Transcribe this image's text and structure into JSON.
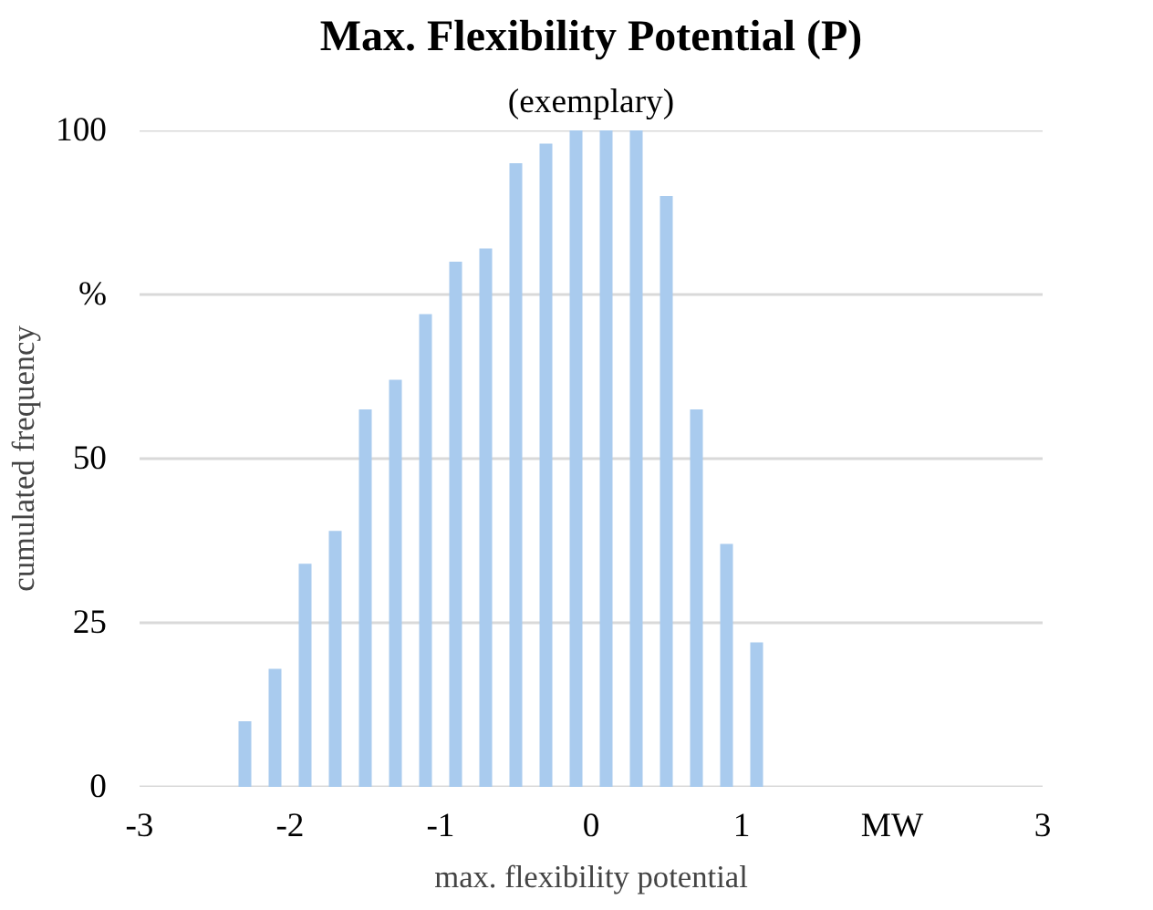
{
  "chart_data": {
    "type": "bar",
    "title": "Max. Flexibility Potential (P)",
    "subtitle": "(exemplary)",
    "xlabel": "max. flexibility potential",
    "ylabel": "cumulated frequency",
    "x": [
      -2.3,
      -2.1,
      -1.9,
      -1.7,
      -1.5,
      -1.3,
      -1.1,
      -0.9,
      -0.7,
      -0.5,
      -0.3,
      -0.1,
      0.1,
      0.3,
      0.5,
      0.7,
      0.9,
      1.1
    ],
    "series": [
      {
        "color": "#a9cbee",
        "values": [
          10,
          18,
          34,
          39,
          57.5,
          62,
          72,
          80,
          82,
          95,
          98,
          100,
          100,
          100,
          90,
          57.5,
          37,
          22
        ]
      }
    ],
    "xlim": [
      -3,
      3
    ],
    "xticks": [
      -3,
      -2,
      -1,
      0,
      1,
      {
        "value": 2,
        "label": "MW"
      },
      3
    ],
    "ylim": [
      0,
      100
    ],
    "yticks": [
      0,
      25,
      50,
      {
        "value": 75,
        "label": "%"
      },
      100
    ],
    "grid": "y"
  }
}
